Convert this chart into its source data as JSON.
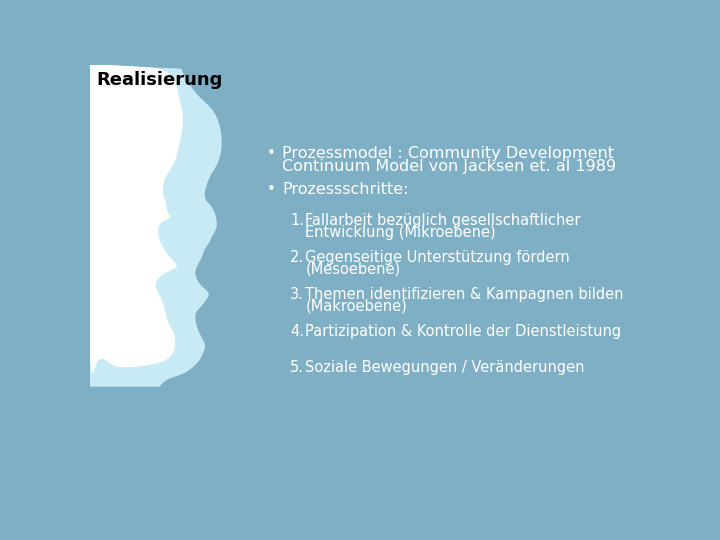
{
  "title": "Realisierung",
  "title_color": "#000000",
  "title_fontsize": 13,
  "bg_color": "#7fafc4",
  "face_color_outer": "#c8eaf5",
  "face_color_inner": "#ffffff",
  "bullet1_line1": "Prozessmodel : Community Development",
  "bullet1_line2": "Continuum Model von Jacksen et. al 1989",
  "bullet2": "Prozessschritte:",
  "items": [
    "Fallarbeit bezüglich gesellschaftlicher\nEntwicklung (Mikroebene)",
    "Gegenseitige Unterstützung fördern\n(Mesoebene)",
    "Themen identifizieren & Kampagnen bilden\n(Makroebene)",
    "Partizipation & Kontrolle der Dienstleistung",
    "Soziale Bewegungen / Veränderungen"
  ],
  "text_color": "#ffffff",
  "item_fontsize": 10.5,
  "bullet_fontsize": 11.5
}
